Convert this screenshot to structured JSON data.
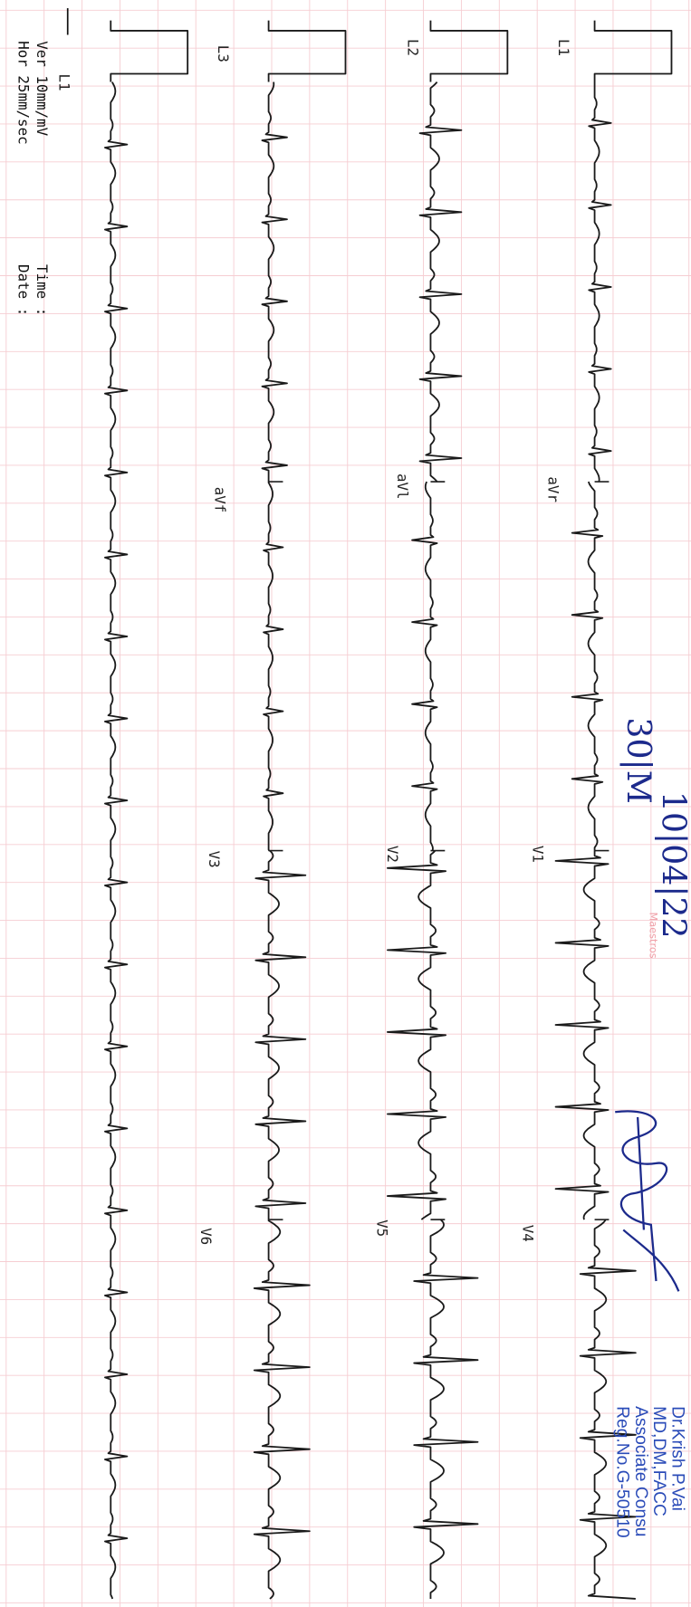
{
  "strips": [
    {
      "leads": [
        "L1",
        "aVr",
        "V1",
        "V4"
      ]
    },
    {
      "leads": [
        "L2",
        "aVl",
        "V2",
        "V5"
      ]
    },
    {
      "leads": [
        "L3",
        "aVf",
        "V3",
        "V6"
      ]
    },
    {
      "leads": [
        "L1"
      ]
    }
  ],
  "settings": {
    "vertical": "Ver  10mm/mV",
    "horizontal": "Hor  25mm/sec",
    "time": "Time :",
    "date": "Date :"
  },
  "handwritten": {
    "patient": "30|M",
    "date": "10|04|22"
  },
  "watermark": "Maestros",
  "stamp": [
    "Dr.Krish P.Vai",
    "MD,DM,FACC",
    "Associate Consu",
    "Reg.No.G-50510"
  ]
}
